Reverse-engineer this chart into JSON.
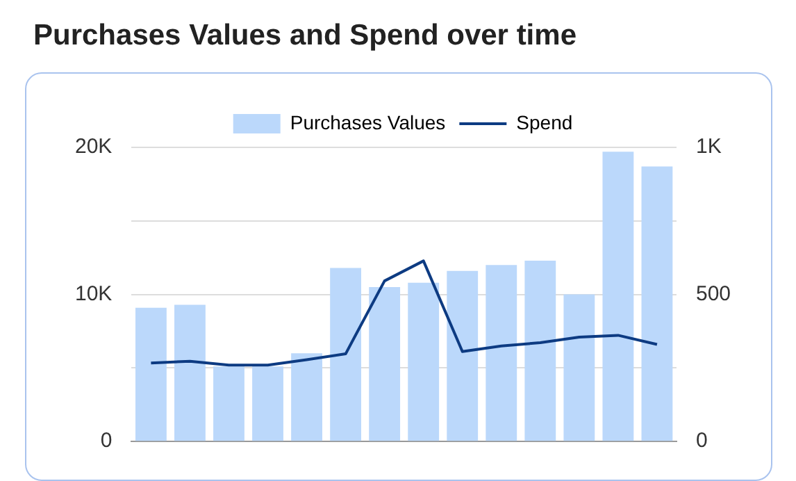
{
  "chart_data": {
    "type": "bar",
    "title": "Purchases Values and Spend over time",
    "categories": [
      null,
      null,
      null,
      null,
      null,
      null,
      null,
      null,
      null,
      null,
      null,
      null,
      null,
      null
    ],
    "series": [
      {
        "name": "Purchases Values",
        "color": "#bbd8fb",
        "values": [
          9100,
          9300,
          5100,
          5100,
          6000,
          11800,
          10500,
          10800,
          11600,
          12000,
          12300,
          10000,
          19700,
          18700
        ]
      },
      {
        "name": "Spend",
        "type": "line",
        "axis": "y2",
        "color": "#0d3b82",
        "values": [
          267,
          273,
          260,
          260,
          278,
          298,
          546,
          614,
          306,
          325,
          336,
          355,
          361,
          330
        ]
      }
    ],
    "ylim": [
      0,
      20000
    ],
    "yticks": [
      {
        "value": 0,
        "label": "0"
      },
      {
        "value": 5000,
        "label": null
      },
      {
        "value": 10000,
        "label": "10K"
      },
      {
        "value": 15000,
        "label": null
      },
      {
        "value": 20000,
        "label": "20K"
      }
    ],
    "y2lim": [
      0,
      1000
    ],
    "y2ticks": [
      {
        "value": 0,
        "label": "0"
      },
      {
        "value": 250,
        "label": null
      },
      {
        "value": 500,
        "label": "500"
      },
      {
        "value": 750,
        "label": null
      },
      {
        "value": 1000,
        "label": "1K"
      }
    ],
    "grid": "y",
    "legend": "top",
    "marker": "none"
  }
}
